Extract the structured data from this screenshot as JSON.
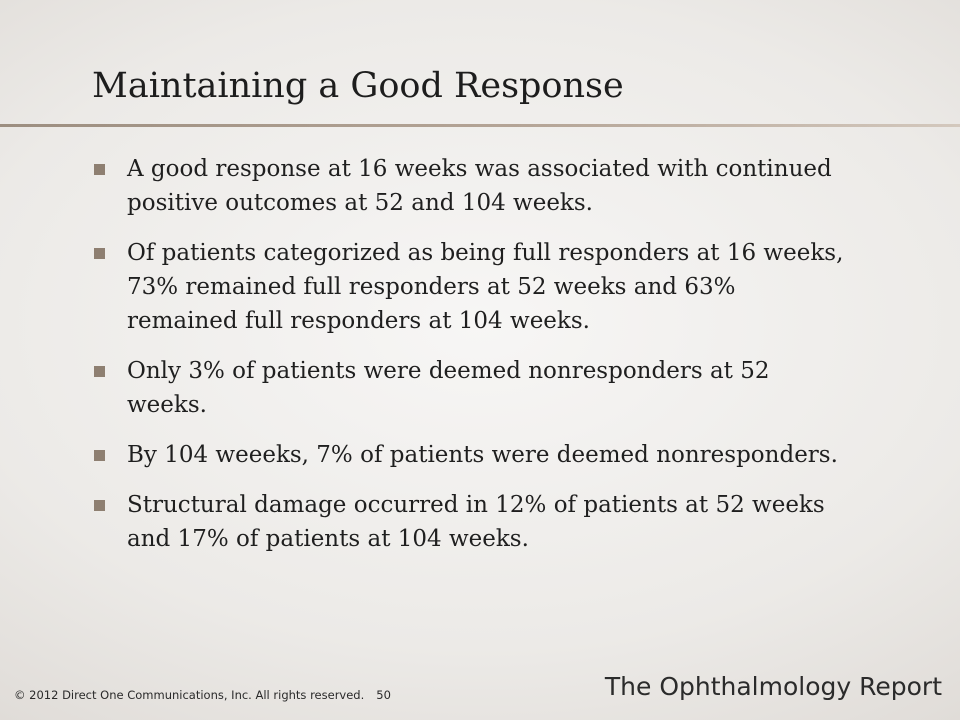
{
  "slide": {
    "title": "Maintaining a Good Response",
    "bullets": [
      "A good response at 16 weeks was associated with continued positive outcomes at 52 and 104 weeks.",
      "Of patients categorized as being full responders at 16 weeks, 73% remained full responders at 52 weeks and 63% remained full responders at 104 weeks.",
      "Only 3% of patients were deemed nonresponders at 52 weeks.",
      "By 104 weeeks, 7% of patients were deemed nonresponders.",
      "Structural damage occurred in 12% of patients at 52 weeks and 17% of patients at 104 weeks."
    ]
  },
  "footer": {
    "copyright": "© 2012 Direct One Communications, Inc. All rights reserved.",
    "page_number": "50",
    "logo_text": "The Ophthalmology Report"
  },
  "colors": {
    "bullet_marker": "#8e7f71",
    "title_rule": "#a89888",
    "text": "#1f1f1f"
  }
}
